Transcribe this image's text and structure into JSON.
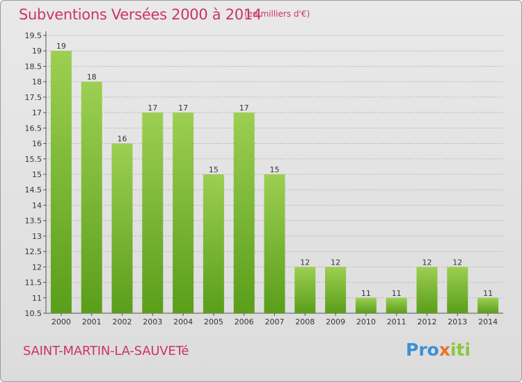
{
  "header": {
    "title": "Subventions Versées 2000 à 2014",
    "unit_note": "(en milliers d'€)"
  },
  "footer": {
    "town": "SAINT-MARTIN-LA-SAUVETé",
    "logo_text": "Proxiti"
  },
  "colors": {
    "bar_top": "#9ccf52",
    "bar_bottom": "#5a9e1a",
    "title": "#cc3366",
    "grid": "#b5b5b5"
  },
  "chart_data": {
    "type": "bar",
    "title": "Subventions Versées 2000 à 2014",
    "xlabel": "",
    "ylabel": "",
    "categories": [
      "2000",
      "2001",
      "2002",
      "2003",
      "2004",
      "2005",
      "2006",
      "2007",
      "2008",
      "2009",
      "2010",
      "2011",
      "2012",
      "2013",
      "2014"
    ],
    "values": [
      19,
      18,
      16,
      17,
      17,
      15,
      17,
      15,
      12,
      12,
      11,
      11,
      12,
      12,
      11
    ],
    "ylim": [
      10.5,
      19.5
    ],
    "yticks": [
      "10.5",
      "11",
      "11.5",
      "12",
      "12.5",
      "13",
      "13.5",
      "14",
      "14.5",
      "15",
      "15.5",
      "16",
      "16.5",
      "17",
      "17.5",
      "18",
      "18.5",
      "19",
      "19.5"
    ],
    "grid": true
  }
}
